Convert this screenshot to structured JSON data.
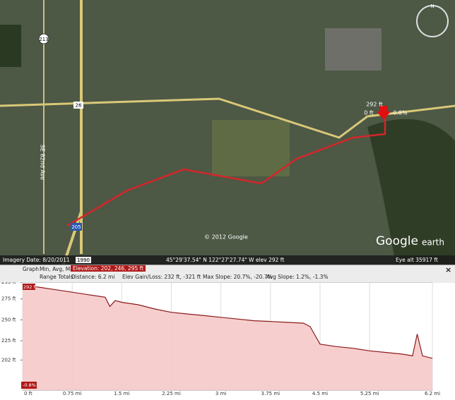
{
  "map": {
    "road_labels": [
      "213",
      "26",
      "205"
    ],
    "street_label": "SE 82nd Ave",
    "copyright": "© 2012 Google",
    "logo_google": "Google",
    "logo_earth": "earth",
    "north": "N",
    "marker": {
      "elevation": "292 ft",
      "distance": "0 ft",
      "slope": "-0.8%"
    }
  },
  "status_bar": {
    "imagery_date": "Imagery Date: 8/20/2011",
    "year": "1990",
    "coordinates": "45°29'37.54\" N  122°27'27.74\" W  elev  292 ft",
    "eye_alt": "Eye alt   35917 ft"
  },
  "profile_header": {
    "graph": "Graph",
    "min_avg_max": "Min, Avg, Max:",
    "elevation": "Elevation: 202, 246, 295 ft",
    "range_totals": "Range Totals:",
    "distance": "Distance: 6.2 mi",
    "gain_loss": "Elev Gain/Loss: 232 ft, -321 ft",
    "max_slope": "Max Slope: 20.7%, -20.7%",
    "avg_slope": "Avg Slope: 1.2%, -1.3%",
    "close": "×"
  },
  "chart_data": {
    "type": "area",
    "x": [
      0,
      0.25,
      0.5,
      0.75,
      1.0,
      1.25,
      1.32,
      1.4,
      1.5,
      1.75,
      2.0,
      2.25,
      2.5,
      2.75,
      3.0,
      3.25,
      3.5,
      3.75,
      4.0,
      4.25,
      4.35,
      4.45,
      4.5,
      4.75,
      5.0,
      5.25,
      5.5,
      5.75,
      5.9,
      5.97,
      6.05,
      6.2
    ],
    "values": [
      291,
      289,
      286,
      283,
      280,
      277,
      266,
      273,
      271,
      268,
      263,
      259,
      257,
      255,
      253,
      251,
      249,
      248,
      247,
      246,
      242,
      228,
      221,
      218,
      216,
      213,
      211,
      209,
      207,
      233,
      207,
      204
    ],
    "xlim": [
      0,
      6.2
    ],
    "ylim": [
      166,
      295
    ],
    "xticks": [
      {
        "value": 0,
        "label": "0 ft"
      },
      {
        "value": 0.75,
        "label": "0.75 mi"
      },
      {
        "value": 1.5,
        "label": "1.5 mi"
      },
      {
        "value": 2.25,
        "label": "2.25 mi"
      },
      {
        "value": 3,
        "label": "3 mi"
      },
      {
        "value": 3.75,
        "label": "3.75 mi"
      },
      {
        "value": 4.5,
        "label": "4.5 mi"
      },
      {
        "value": 5.25,
        "label": "5.25 mi"
      },
      {
        "value": 6.2,
        "label": "6.2 mi"
      }
    ],
    "yticks": [
      {
        "value": 202,
        "label": "202 ft"
      },
      {
        "value": 225,
        "label": "225 ft"
      },
      {
        "value": 250,
        "label": "250 ft"
      },
      {
        "value": 275,
        "label": "275 ft"
      },
      {
        "value": 295,
        "label": "295 ft"
      }
    ],
    "color": "#8b1a1a",
    "fill": "#f6c9c9",
    "grid": true,
    "cursor": {
      "elevation": "292 ft",
      "slope": "-0.8%"
    }
  }
}
